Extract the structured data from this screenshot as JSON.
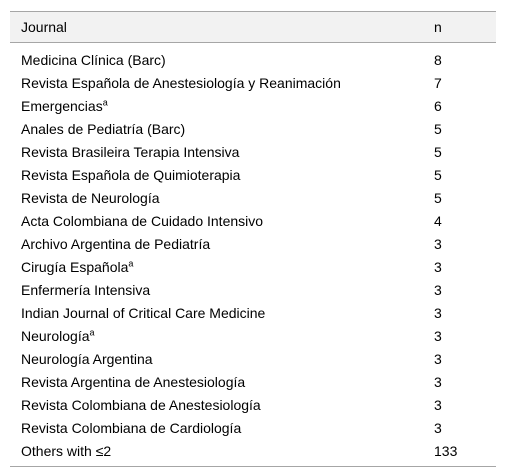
{
  "table": {
    "header": {
      "journal": "Journal",
      "n": "n"
    },
    "rows": [
      {
        "journal": "Medicina Clínica (Barc)",
        "sup": "",
        "n": "8"
      },
      {
        "journal": "Revista Española de Anestesiología y Reanimación",
        "sup": "",
        "n": "7"
      },
      {
        "journal": "Emergencias",
        "sup": "a",
        "n": "6"
      },
      {
        "journal": "Anales de Pediatría (Barc)",
        "sup": "",
        "n": "5"
      },
      {
        "journal": "Revista Brasileira Terapia Intensiva",
        "sup": "",
        "n": "5"
      },
      {
        "journal": "Revista Española de Quimioterapia",
        "sup": "",
        "n": "5"
      },
      {
        "journal": "Revista de Neurología",
        "sup": "",
        "n": "5"
      },
      {
        "journal": "Acta Colombiana de Cuidado Intensivo",
        "sup": "",
        "n": "4"
      },
      {
        "journal": "Archivo Argentina de Pediatría",
        "sup": "",
        "n": "3"
      },
      {
        "journal": "Cirugía Española",
        "sup": "a",
        "n": "3"
      },
      {
        "journal": "Enfermería Intensiva",
        "sup": "",
        "n": "3"
      },
      {
        "journal": "Indian Journal of Critical Care Medicine",
        "sup": "",
        "n": "3"
      },
      {
        "journal": "Neurología",
        "sup": "a",
        "n": "3"
      },
      {
        "journal": "Neurología Argentina",
        "sup": "",
        "n": "3"
      },
      {
        "journal": "Revista Argentina de Anestesiología",
        "sup": "",
        "n": "3"
      },
      {
        "journal": "Revista Colombiana de Anestesiología",
        "sup": "",
        "n": "3"
      },
      {
        "journal": "Revista Colombiana de Cardiología",
        "sup": "",
        "n": "3"
      },
      {
        "journal": "Others with ≤2",
        "sup": "",
        "n": "133"
      }
    ]
  }
}
